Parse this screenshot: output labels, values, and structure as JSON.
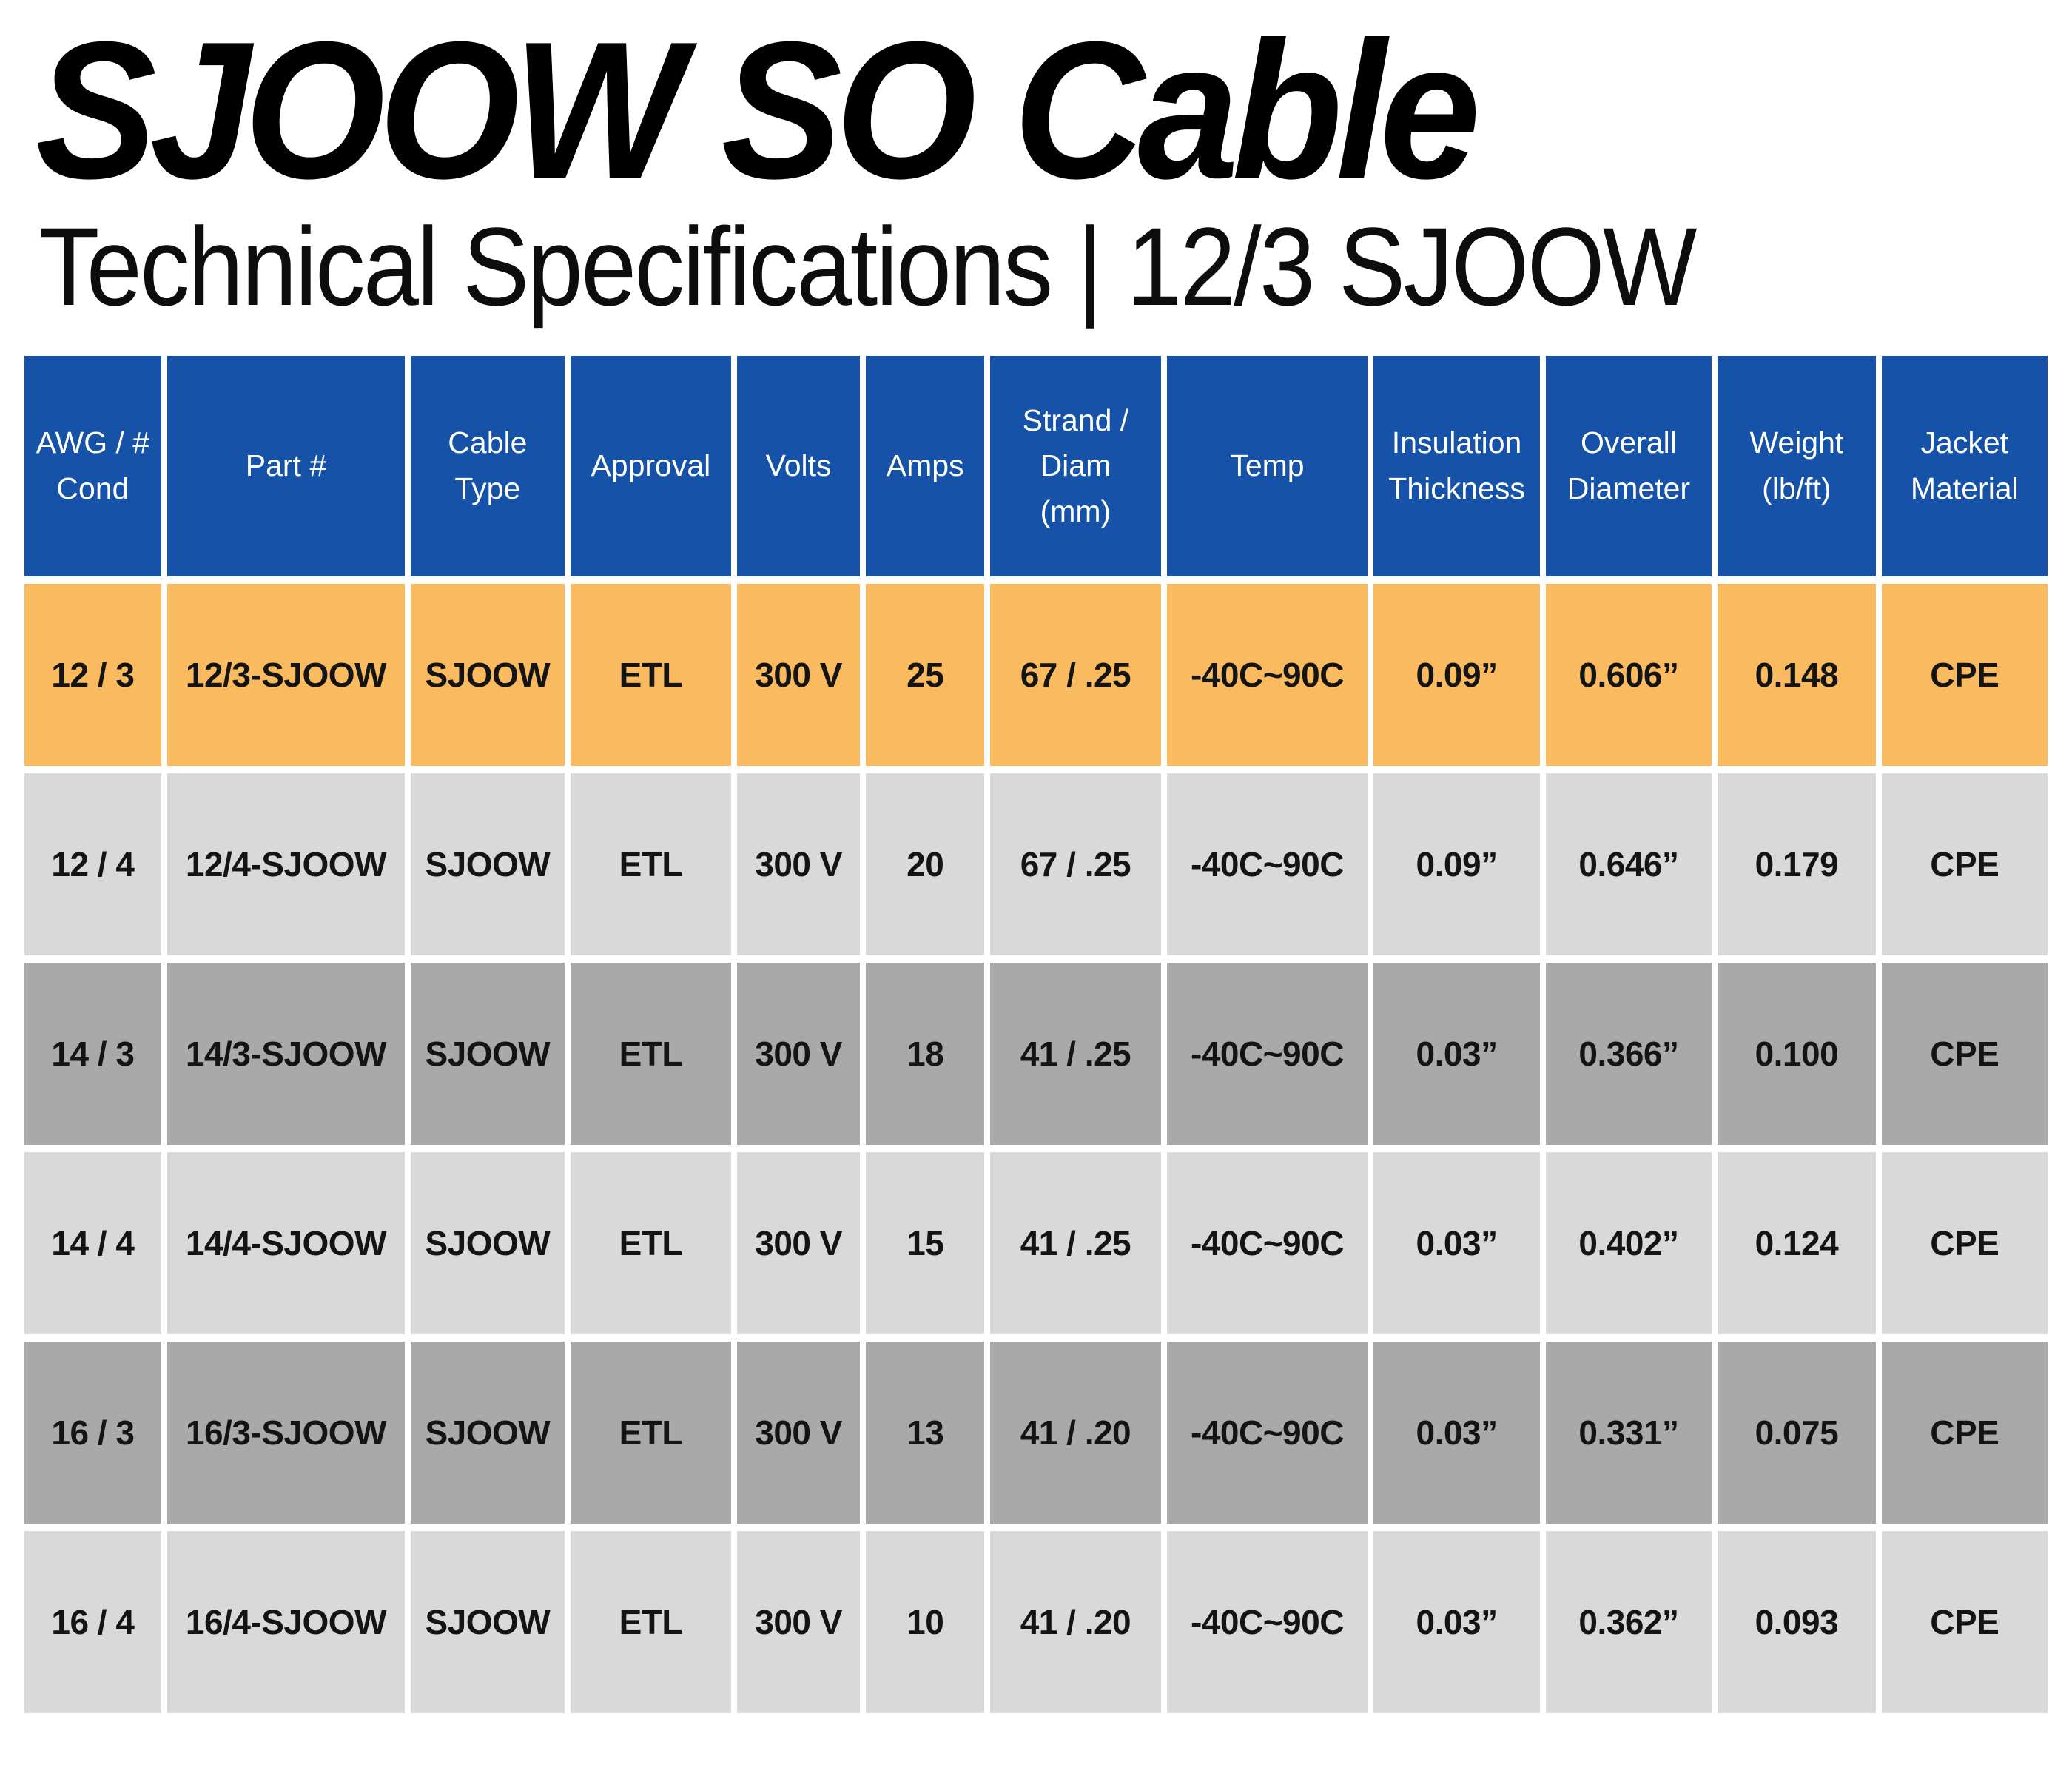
{
  "page": {
    "title": "SJOOW SO Cable",
    "subtitle": "Technical Specifications | 12/3 SJOOW"
  },
  "colors": {
    "header_bg": "#1552A8",
    "header_text": "#FFFFFF",
    "row_highlight": "#F9BA60",
    "row_light": "#D9D9D9",
    "row_dark": "#A9A9A9",
    "cell_text": "#141414"
  },
  "table": {
    "headers": [
      "AWG / #\nCond",
      "Part #",
      "Cable\nType",
      "Approval",
      "Volts",
      "Amps",
      "Strand /\nDiam\n(mm)",
      "Temp",
      "Insulation\nThickness",
      "Overall\nDiameter",
      "Weight\n(lb/ft)",
      "Jacket\nMaterial"
    ],
    "rows": [
      {
        "style": "highlight",
        "cells": [
          "12 / 3",
          "12/3-SJOOW",
          "SJOOW",
          "ETL",
          "300 V",
          "25",
          "67 / .25",
          "-40C~90C",
          "0.09”",
          "0.606”",
          "0.148",
          "CPE"
        ]
      },
      {
        "style": "light",
        "cells": [
          "12 / 4",
          "12/4-SJOOW",
          "SJOOW",
          "ETL",
          "300 V",
          "20",
          "67 / .25",
          "-40C~90C",
          "0.09”",
          "0.646”",
          "0.179",
          "CPE"
        ]
      },
      {
        "style": "dark",
        "cells": [
          "14 / 3",
          "14/3-SJOOW",
          "SJOOW",
          "ETL",
          "300 V",
          "18",
          "41 / .25",
          "-40C~90C",
          "0.03”",
          "0.366”",
          "0.100",
          "CPE"
        ]
      },
      {
        "style": "light",
        "cells": [
          "14 / 4",
          "14/4-SJOOW",
          "SJOOW",
          "ETL",
          "300 V",
          "15",
          "41 / .25",
          "-40C~90C",
          "0.03”",
          "0.402”",
          "0.124",
          "CPE"
        ]
      },
      {
        "style": "dark",
        "cells": [
          "16 / 3",
          "16/3-SJOOW",
          "SJOOW",
          "ETL",
          "300 V",
          "13",
          "41 / .20",
          "-40C~90C",
          "0.03”",
          "0.331”",
          "0.075",
          "CPE"
        ]
      },
      {
        "style": "light",
        "cells": [
          "16 / 4",
          "16/4-SJOOW",
          "SJOOW",
          "ETL",
          "300 V",
          "10",
          "41 / .20",
          "-40C~90C",
          "0.03”",
          "0.362”",
          "0.093",
          "CPE"
        ]
      }
    ]
  }
}
